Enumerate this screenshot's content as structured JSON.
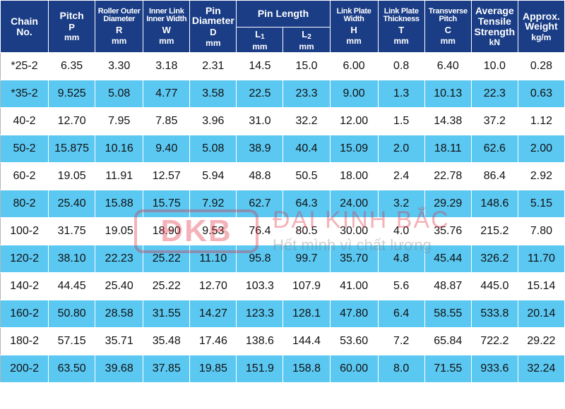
{
  "header": {
    "chain_no": [
      "Chain",
      "No."
    ],
    "pitch": {
      "name": "Pitch",
      "symbol": "P",
      "unit": "mm"
    },
    "roller": {
      "name": [
        "Roller Outer",
        "Diameter"
      ],
      "symbol": "R",
      "unit": "mm"
    },
    "inner_width": {
      "name": [
        "Inner Link",
        "Inner Width"
      ],
      "symbol": "W",
      "unit": "mm"
    },
    "pin_diameter": {
      "name": [
        "Pin",
        "Diameter"
      ],
      "symbol": "D",
      "unit": "mm"
    },
    "pin_length": {
      "name": "Pin Length",
      "l1": {
        "symbol": "L",
        "sub": "1",
        "unit": "mm"
      },
      "l2": {
        "symbol": "L",
        "sub": "2",
        "unit": "mm"
      }
    },
    "plate_width": {
      "name": [
        "Link Plate",
        "Width"
      ],
      "symbol": "H",
      "unit": "mm"
    },
    "plate_thickness": {
      "name": [
        "Link Plate",
        "Thickness"
      ],
      "symbol": "T",
      "unit": "mm"
    },
    "transverse_pitch": {
      "name": [
        "Transverse",
        "Pitch"
      ],
      "symbol": "C",
      "unit": "mm"
    },
    "tensile": {
      "name": [
        "Average",
        "Tensile",
        "Strength"
      ],
      "unit": "kN"
    },
    "weight": {
      "name": [
        "Approx.",
        "Weight"
      ],
      "unit": "kg/m"
    }
  },
  "rows": [
    [
      "*25-2",
      "6.35",
      "3.30",
      "3.18",
      "2.31",
      "14.5",
      "15.0",
      "6.00",
      "0.8",
      "6.40",
      "10.0",
      "0.28"
    ],
    [
      "*35-2",
      "9.525",
      "5.08",
      "4.77",
      "3.58",
      "22.5",
      "23.3",
      "9.00",
      "1.3",
      "10.13",
      "22.3",
      "0.63"
    ],
    [
      "40-2",
      "12.70",
      "7.95",
      "7.85",
      "3.96",
      "31.0",
      "32.2",
      "12.00",
      "1.5",
      "14.38",
      "37.2",
      "1.12"
    ],
    [
      "50-2",
      "15.875",
      "10.16",
      "9.40",
      "5.08",
      "38.9",
      "40.4",
      "15.09",
      "2.0",
      "18.11",
      "62.6",
      "2.00"
    ],
    [
      "60-2",
      "19.05",
      "11.91",
      "12.57",
      "5.94",
      "48.8",
      "50.5",
      "18.00",
      "2.4",
      "22.78",
      "86.4",
      "2.92"
    ],
    [
      "80-2",
      "25.40",
      "15.88",
      "15.75",
      "7.92",
      "62.7",
      "64.3",
      "24.00",
      "3.2",
      "29.29",
      "148.6",
      "5.15"
    ],
    [
      "100-2",
      "31.75",
      "19.05",
      "18.90",
      "9.53",
      "76.4",
      "80.5",
      "30.00",
      "4.0",
      "35.76",
      "215.2",
      "7.80"
    ],
    [
      "120-2",
      "38.10",
      "22.23",
      "25.22",
      "11.10",
      "95.8",
      "99.7",
      "35.70",
      "4.8",
      "45.44",
      "326.2",
      "11.70"
    ],
    [
      "140-2",
      "44.45",
      "25.40",
      "25.22",
      "12.70",
      "103.3",
      "107.9",
      "41.00",
      "5.6",
      "48.87",
      "445.0",
      "15.14"
    ],
    [
      "160-2",
      "50.80",
      "28.58",
      "31.55",
      "14.27",
      "123.3",
      "128.1",
      "47.80",
      "6.4",
      "58.55",
      "533.8",
      "20.14"
    ],
    [
      "180-2",
      "57.15",
      "35.71",
      "35.48",
      "17.46",
      "138.6",
      "144.4",
      "53.60",
      "7.2",
      "65.84",
      "722.2",
      "29.22"
    ],
    [
      "200-2",
      "63.50",
      "39.68",
      "37.85",
      "19.85",
      "151.9",
      "158.8",
      "60.00",
      "8.0",
      "71.55",
      "933.6",
      "32.24"
    ]
  ],
  "watermark": {
    "logo": "ĐKB",
    "name": "ĐẠI KINH BẮC",
    "slogan": "Hết mình vì chất lượng"
  },
  "colors": {
    "header_bg": "#1a3d86",
    "row_alt_bg": "#5bc8f2",
    "row_bg": "#ffffff",
    "watermark": "#e0263a"
  }
}
